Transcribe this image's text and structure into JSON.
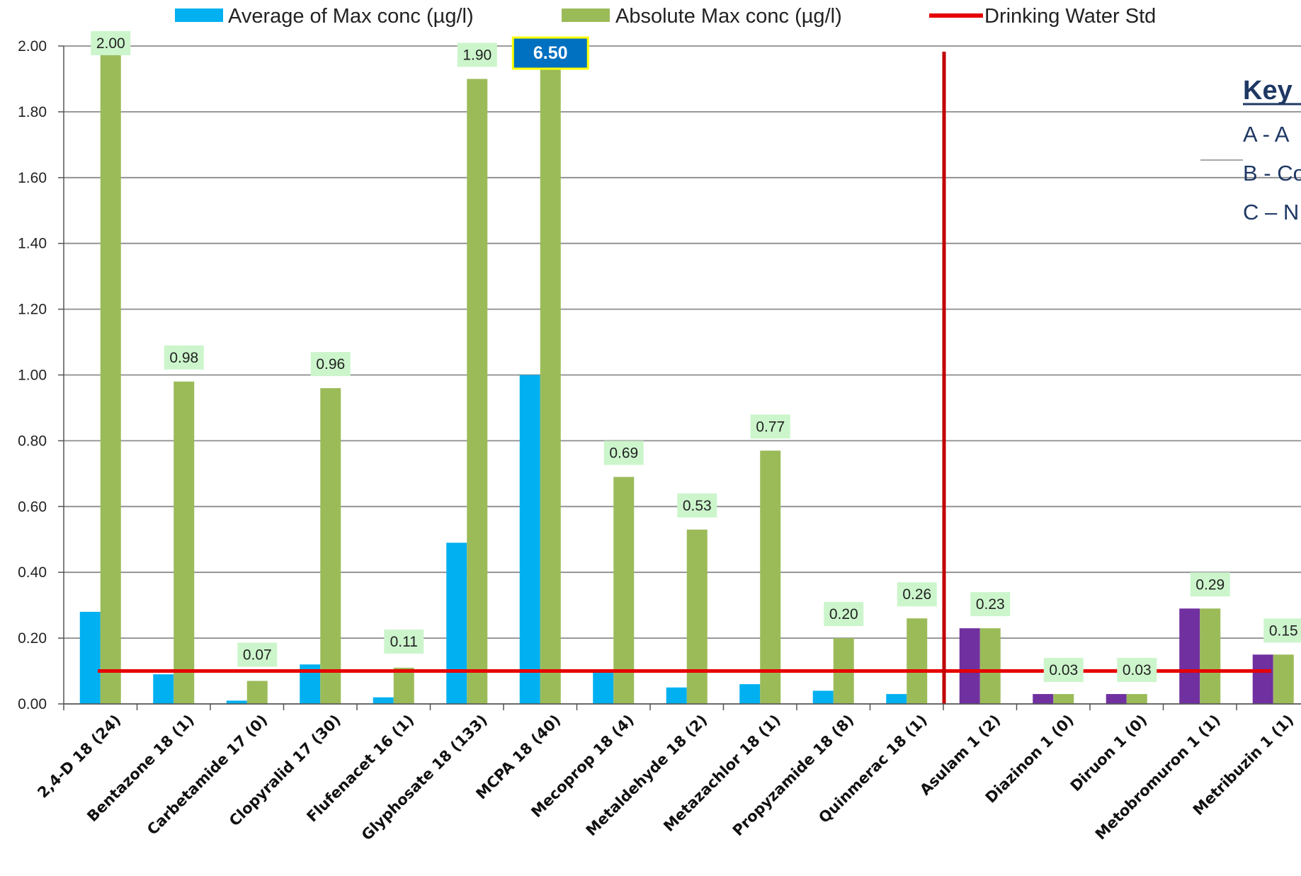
{
  "chart_data": {
    "type": "bar",
    "title": "",
    "xlabel": "",
    "ylabel": "",
    "ylim": [
      0,
      2.0
    ],
    "ytick_labels": [
      "0.00",
      "0.20",
      "0.40",
      "0.60",
      "0.80",
      "1.00",
      "1.20",
      "1.40",
      "1.60",
      "1.80",
      "2.00"
    ],
    "grid": true,
    "legend_position": "top",
    "categories": [
      "2,4-D 18 (24)",
      "Bentazone 18 (1)",
      "Carbetamide 17 (0)",
      "Clopyralid 17 (30)",
      "Flufenacet 16 (1)",
      "Glyphosate 18 (133)",
      "MCPA 18 (40)",
      "Mecoprop 18 (4)",
      "Metaldehyde 18 (2)",
      "Metazachlor 18 (1)",
      "Propyzamide 18 (8)",
      "Quinmerac 18 (1)",
      "Asulam  1 (2)",
      "Diazinon  1 (0)",
      "Diruon  1 (0)",
      "Metobromuron  1 (1)",
      "Metribuzin  1 (1)"
    ],
    "series": [
      {
        "name": "Average of Max conc  (µg/l)",
        "color": "#00b0f0",
        "alt_color": "#7030a0",
        "values": [
          0.28,
          0.09,
          0.01,
          0.12,
          0.02,
          0.49,
          1.0,
          0.1,
          0.05,
          0.06,
          0.04,
          0.03,
          0.23,
          0.03,
          0.03,
          0.29,
          0.15
        ]
      },
      {
        "name": "Absolute Max conc  (µg/l)",
        "color": "#9bbb59",
        "values": [
          2.0,
          0.98,
          0.07,
          0.96,
          0.11,
          1.9,
          6.5,
          0.69,
          0.53,
          0.77,
          0.2,
          0.26,
          0.23,
          0.03,
          0.03,
          0.29,
          0.15
        ],
        "data_labels": [
          "2.00",
          "0.98",
          "0.07",
          "0.96",
          "0.11",
          "1.90",
          "6.50",
          "0.69",
          "0.53",
          "0.77",
          "0.20",
          "0.26",
          "0.23",
          "0.03",
          "0.03",
          "0.29",
          "0.15"
        ]
      }
    ],
    "reference_line": {
      "name": "Drinking Water Std",
      "value": 0.1,
      "color": "#e60000"
    },
    "group_divider_color": "#c00000",
    "grid_color": "#8c8c8c"
  },
  "key": {
    "title": "Key",
    "lines": [
      "A - A",
      "B - Co",
      "C – N"
    ]
  }
}
